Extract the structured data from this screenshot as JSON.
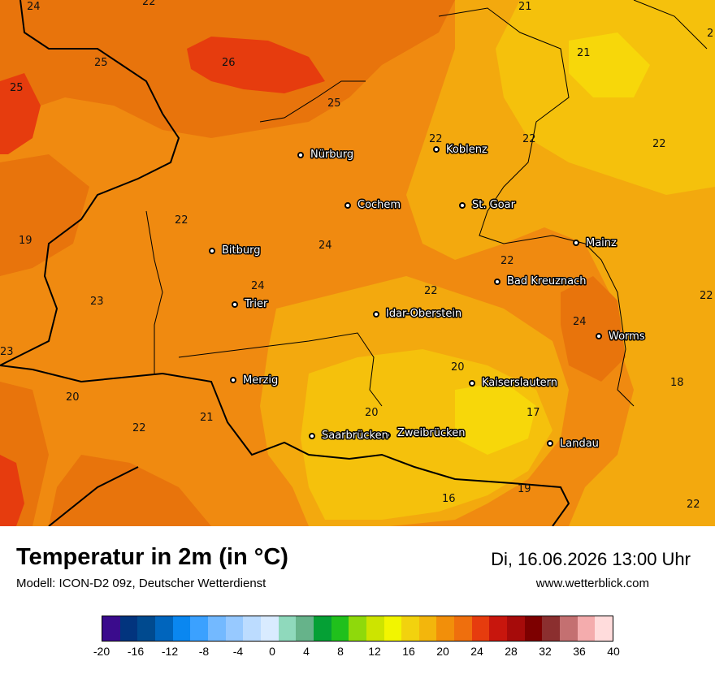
{
  "title": "Temperatur in 2m (in °C)",
  "subtitle": "Modell: ICON-D2 09z, Deutscher Wetterdienst",
  "datetime": "Di, 16.06.2026 13:00 Uhr",
  "website": "www.wetterblick.com",
  "colors": {
    "orange_dark": "#e8740c",
    "orange": "#f08a10",
    "amber": "#f3a90e",
    "yellow": "#f5c10c",
    "yellow_light": "#f7d70a",
    "red": "#e63c0e",
    "border": "#000000"
  },
  "cities": [
    {
      "name": "Nürburg"
    },
    {
      "name": "Koblenz"
    },
    {
      "name": "Cochem"
    },
    {
      "name": "St. Goar"
    },
    {
      "name": "Bitburg"
    },
    {
      "name": "Mainz"
    },
    {
      "name": "Bad Kreuznach"
    },
    {
      "name": "Trier"
    },
    {
      "name": "Idar-Oberstein"
    },
    {
      "name": "Worms"
    },
    {
      "name": "Merzig"
    },
    {
      "name": "Kaiserslautern"
    },
    {
      "name": "Saarbrücken"
    },
    {
      "name": "Zweibrücken"
    },
    {
      "name": "Landau"
    }
  ],
  "isotherm_labels": [
    "24",
    "22",
    "21",
    "21",
    "2",
    "25",
    "26",
    "25",
    "25",
    "22",
    "22",
    "22",
    "22",
    "19",
    "22",
    "24",
    "24",
    "22",
    "22",
    "23",
    "24",
    "23",
    "20",
    "20",
    "22",
    "21",
    "20",
    "17",
    "18",
    "16",
    "19",
    "22"
  ],
  "legend": {
    "colors": [
      "#3a0b8c",
      "#02347e",
      "#004a8f",
      "#0065bd",
      "#0a87f0",
      "#3ba1ff",
      "#73b9ff",
      "#97c9ff",
      "#bcdcff",
      "#d9ebff",
      "#8fd9bc",
      "#66b38a",
      "#05a035",
      "#20c01c",
      "#8fd90b",
      "#cde400",
      "#f2f500",
      "#f2d20e",
      "#f3b60c",
      "#f28f0a",
      "#ef6f0d",
      "#e63c0e",
      "#c8160d",
      "#a60b0a",
      "#7d0000",
      "#8b2f2f",
      "#c47071",
      "#f4acad",
      "#ffdcdc"
    ],
    "ticks": [
      "-20",
      "-16",
      "-12",
      "-8",
      "-4",
      "0",
      "4",
      "8",
      "12",
      "16",
      "20",
      "24",
      "28",
      "32",
      "36",
      "40"
    ]
  }
}
